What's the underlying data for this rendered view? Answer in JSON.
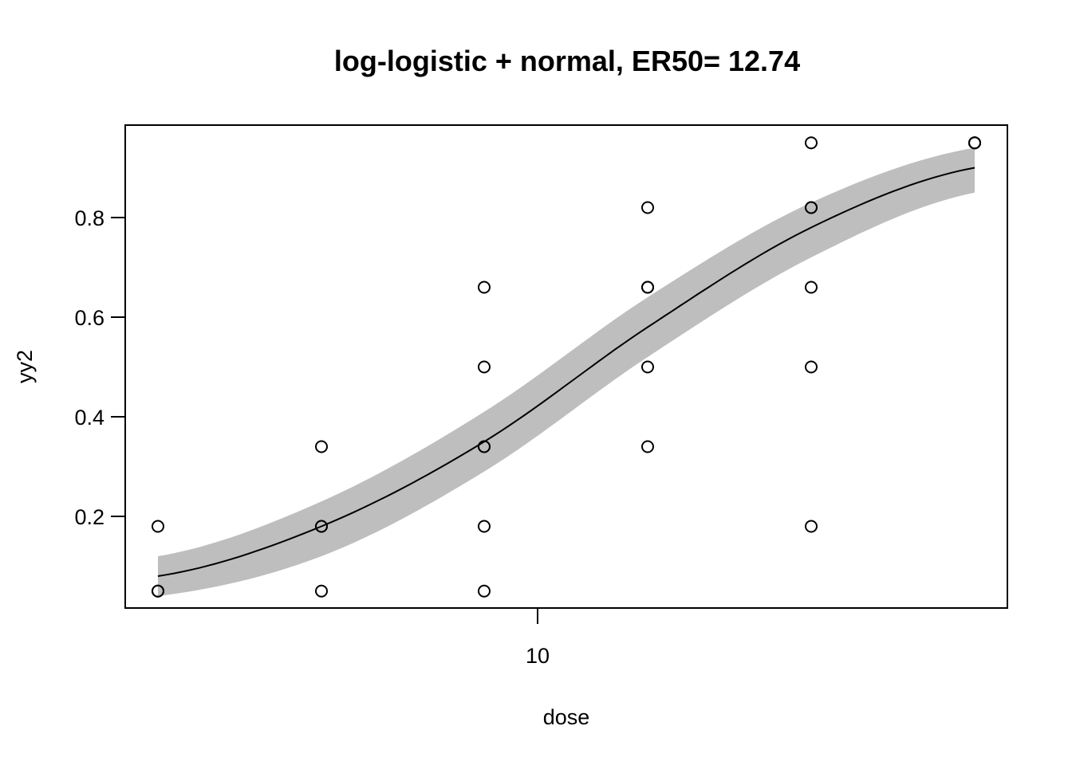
{
  "chart_data": {
    "type": "scatter",
    "title": "log-logistic + normal, ER50= 12.74",
    "xlabel": "dose",
    "ylabel": "yy2",
    "x_scale": "log",
    "x_ticks": [
      "10"
    ],
    "y_ticks": [
      "0.2",
      "0.4",
      "0.6",
      "0.8"
    ],
    "ylim": [
      0.03,
      0.98
    ],
    "grid": false,
    "legend": null,
    "er50": 12.74,
    "dose_levels_estimated": [
      0.63,
      2.06,
      6.7,
      21.9,
      71.4,
      233
    ],
    "points": [
      {
        "dose_index": 0,
        "y": 0.18
      },
      {
        "dose_index": 0,
        "y": 0.05
      },
      {
        "dose_index": 0,
        "y": 0.05
      },
      {
        "dose_index": 1,
        "y": 0.34
      },
      {
        "dose_index": 1,
        "y": 0.18
      },
      {
        "dose_index": 1,
        "y": 0.18
      },
      {
        "dose_index": 1,
        "y": 0.05
      },
      {
        "dose_index": 2,
        "y": 0.66
      },
      {
        "dose_index": 2,
        "y": 0.5
      },
      {
        "dose_index": 2,
        "y": 0.34
      },
      {
        "dose_index": 2,
        "y": 0.34
      },
      {
        "dose_index": 2,
        "y": 0.18
      },
      {
        "dose_index": 2,
        "y": 0.05
      },
      {
        "dose_index": 3,
        "y": 0.82
      },
      {
        "dose_index": 3,
        "y": 0.66
      },
      {
        "dose_index": 3,
        "y": 0.66
      },
      {
        "dose_index": 3,
        "y": 0.5
      },
      {
        "dose_index": 3,
        "y": 0.34
      },
      {
        "dose_index": 4,
        "y": 0.95
      },
      {
        "dose_index": 4,
        "y": 0.82
      },
      {
        "dose_index": 4,
        "y": 0.82
      },
      {
        "dose_index": 4,
        "y": 0.66
      },
      {
        "dose_index": 4,
        "y": 0.5
      },
      {
        "dose_index": 4,
        "y": 0.18
      },
      {
        "dose_index": 5,
        "y": 0.95
      },
      {
        "dose_index": 5,
        "y": 0.95
      },
      {
        "dose_index": 5,
        "y": 0.95
      }
    ],
    "fit_curve": {
      "description": "log-logistic fitted mean with grey confidence band",
      "at_dose_index": [
        0,
        1,
        2,
        3,
        4,
        5
      ],
      "mean": [
        0.08,
        0.18,
        0.35,
        0.58,
        0.78,
        0.9
      ],
      "lower": [
        0.04,
        0.12,
        0.29,
        0.52,
        0.72,
        0.85
      ],
      "upper": [
        0.12,
        0.23,
        0.41,
        0.64,
        0.83,
        0.94
      ]
    },
    "colors": {
      "points": "#000000",
      "curve": "#000000",
      "band": "#bebebe"
    }
  }
}
